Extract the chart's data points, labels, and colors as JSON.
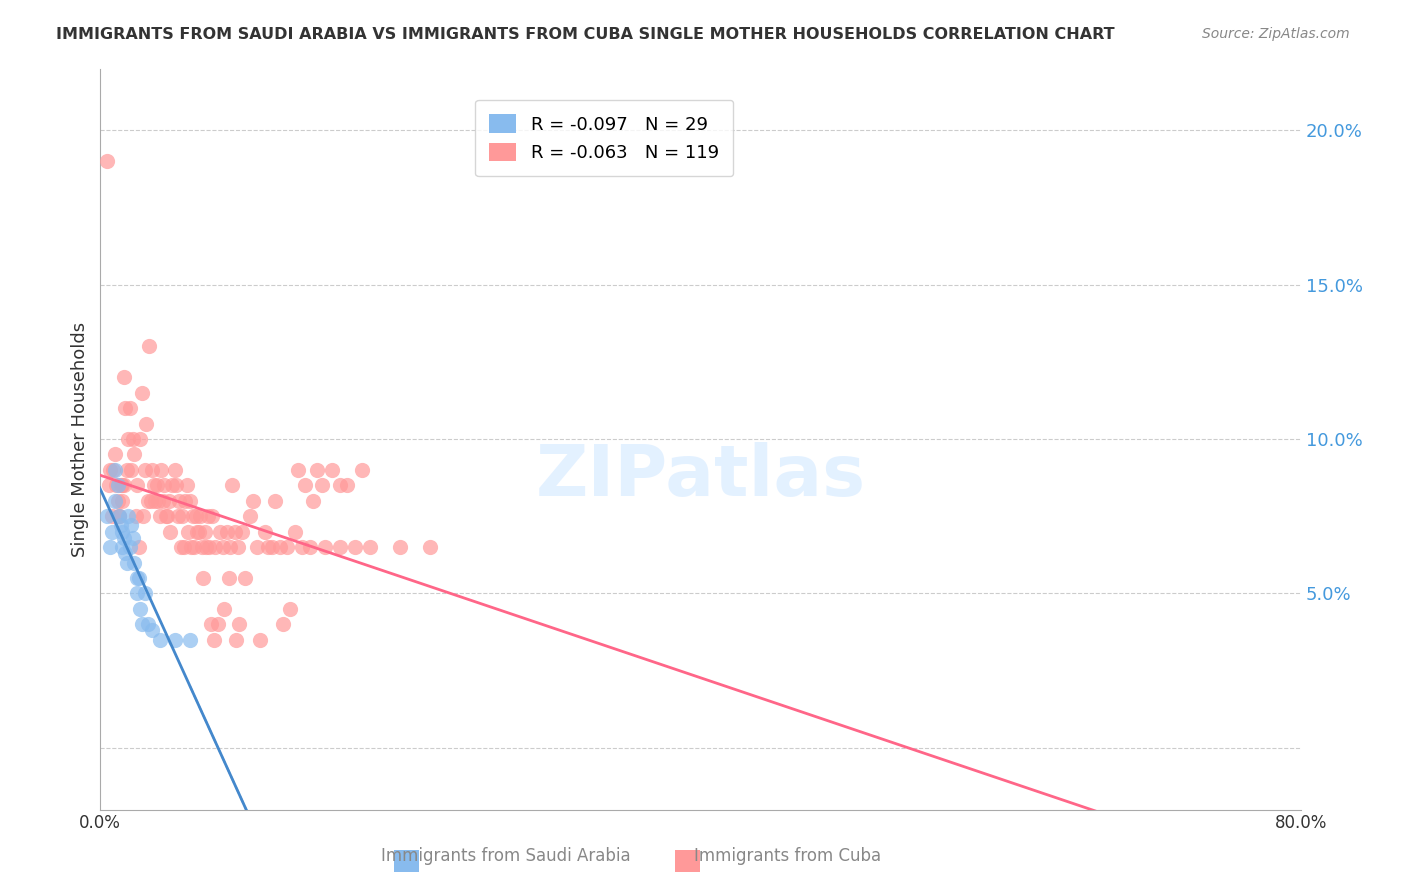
{
  "title": "IMMIGRANTS FROM SAUDI ARABIA VS IMMIGRANTS FROM CUBA SINGLE MOTHER HOUSEHOLDS CORRELATION CHART",
  "source": "Source: ZipAtlas.com",
  "xlabel": "",
  "ylabel": "Single Mother Households",
  "xlim": [
    0.0,
    0.8
  ],
  "ylim": [
    -0.02,
    0.22
  ],
  "yticks": [
    0.0,
    0.05,
    0.1,
    0.15,
    0.2
  ],
  "ytick_labels": [
    "",
    "5.0%",
    "10.0%",
    "15.0%",
    "20.0%"
  ],
  "xticks": [
    0.0,
    0.1,
    0.2,
    0.3,
    0.4,
    0.5,
    0.6,
    0.7,
    0.8
  ],
  "xtick_labels": [
    "0.0%",
    "",
    "",
    "",
    "",
    "",
    "",
    "",
    "80.0%"
  ],
  "legend_r_saudi": "-0.097",
  "legend_n_saudi": "29",
  "legend_r_cuba": "-0.063",
  "legend_n_cuba": "119",
  "color_saudi": "#88BBEE",
  "color_cuba": "#FF9999",
  "color_trendline_saudi": "#4488CC",
  "color_trendline_cuba": "#FF6688",
  "watermark": "ZIPatlas",
  "saudi_x": [
    0.005,
    0.007,
    0.008,
    0.01,
    0.01,
    0.012,
    0.013,
    0.014,
    0.015,
    0.015,
    0.016,
    0.017,
    0.018,
    0.019,
    0.02,
    0.021,
    0.022,
    0.023,
    0.025,
    0.025,
    0.026,
    0.027,
    0.028,
    0.03,
    0.032,
    0.035,
    0.04,
    0.05,
    0.06
  ],
  "saudi_y": [
    0.075,
    0.065,
    0.07,
    0.09,
    0.08,
    0.085,
    0.075,
    0.072,
    0.07,
    0.065,
    0.068,
    0.063,
    0.06,
    0.075,
    0.065,
    0.072,
    0.068,
    0.06,
    0.055,
    0.05,
    0.055,
    0.045,
    0.04,
    0.05,
    0.04,
    0.038,
    0.035,
    0.035,
    0.035
  ],
  "cuba_x": [
    0.005,
    0.006,
    0.007,
    0.008,
    0.009,
    0.01,
    0.011,
    0.012,
    0.013,
    0.015,
    0.016,
    0.017,
    0.018,
    0.019,
    0.02,
    0.021,
    0.022,
    0.023,
    0.025,
    0.027,
    0.028,
    0.03,
    0.031,
    0.032,
    0.033,
    0.034,
    0.035,
    0.036,
    0.037,
    0.038,
    0.04,
    0.041,
    0.042,
    0.043,
    0.045,
    0.046,
    0.047,
    0.048,
    0.05,
    0.051,
    0.052,
    0.053,
    0.055,
    0.056,
    0.057,
    0.058,
    0.06,
    0.062,
    0.063,
    0.065,
    0.067,
    0.068,
    0.07,
    0.071,
    0.072,
    0.073,
    0.075,
    0.077,
    0.08,
    0.082,
    0.085,
    0.087,
    0.09,
    0.092,
    0.095,
    0.1,
    0.105,
    0.11,
    0.115,
    0.12,
    0.125,
    0.13,
    0.135,
    0.14,
    0.15,
    0.16,
    0.17,
    0.18,
    0.2,
    0.22,
    0.013,
    0.014,
    0.015,
    0.016,
    0.024,
    0.026,
    0.029,
    0.039,
    0.044,
    0.054,
    0.059,
    0.061,
    0.064,
    0.066,
    0.069,
    0.074,
    0.076,
    0.079,
    0.083,
    0.086,
    0.088,
    0.091,
    0.093,
    0.097,
    0.102,
    0.107,
    0.112,
    0.117,
    0.122,
    0.127,
    0.132,
    0.137,
    0.142,
    0.145,
    0.148,
    0.155,
    0.16,
    0.165,
    0.175
  ],
  "cuba_y": [
    0.19,
    0.085,
    0.09,
    0.075,
    0.09,
    0.095,
    0.085,
    0.08,
    0.075,
    0.085,
    0.12,
    0.11,
    0.09,
    0.1,
    0.11,
    0.09,
    0.1,
    0.095,
    0.085,
    0.1,
    0.115,
    0.09,
    0.105,
    0.08,
    0.13,
    0.08,
    0.09,
    0.085,
    0.08,
    0.085,
    0.075,
    0.09,
    0.08,
    0.085,
    0.075,
    0.08,
    0.07,
    0.085,
    0.09,
    0.085,
    0.075,
    0.08,
    0.075,
    0.065,
    0.08,
    0.085,
    0.08,
    0.075,
    0.065,
    0.07,
    0.075,
    0.065,
    0.07,
    0.065,
    0.075,
    0.065,
    0.075,
    0.065,
    0.07,
    0.065,
    0.07,
    0.065,
    0.07,
    0.065,
    0.07,
    0.075,
    0.065,
    0.07,
    0.065,
    0.065,
    0.065,
    0.07,
    0.065,
    0.065,
    0.065,
    0.065,
    0.065,
    0.065,
    0.065,
    0.065,
    0.075,
    0.085,
    0.08,
    0.085,
    0.075,
    0.065,
    0.075,
    0.08,
    0.075,
    0.065,
    0.07,
    0.065,
    0.075,
    0.07,
    0.055,
    0.04,
    0.035,
    0.04,
    0.045,
    0.055,
    0.085,
    0.035,
    0.04,
    0.055,
    0.08,
    0.035,
    0.065,
    0.08,
    0.04,
    0.045,
    0.09,
    0.085,
    0.08,
    0.09,
    0.085,
    0.09,
    0.085,
    0.085,
    0.09
  ]
}
